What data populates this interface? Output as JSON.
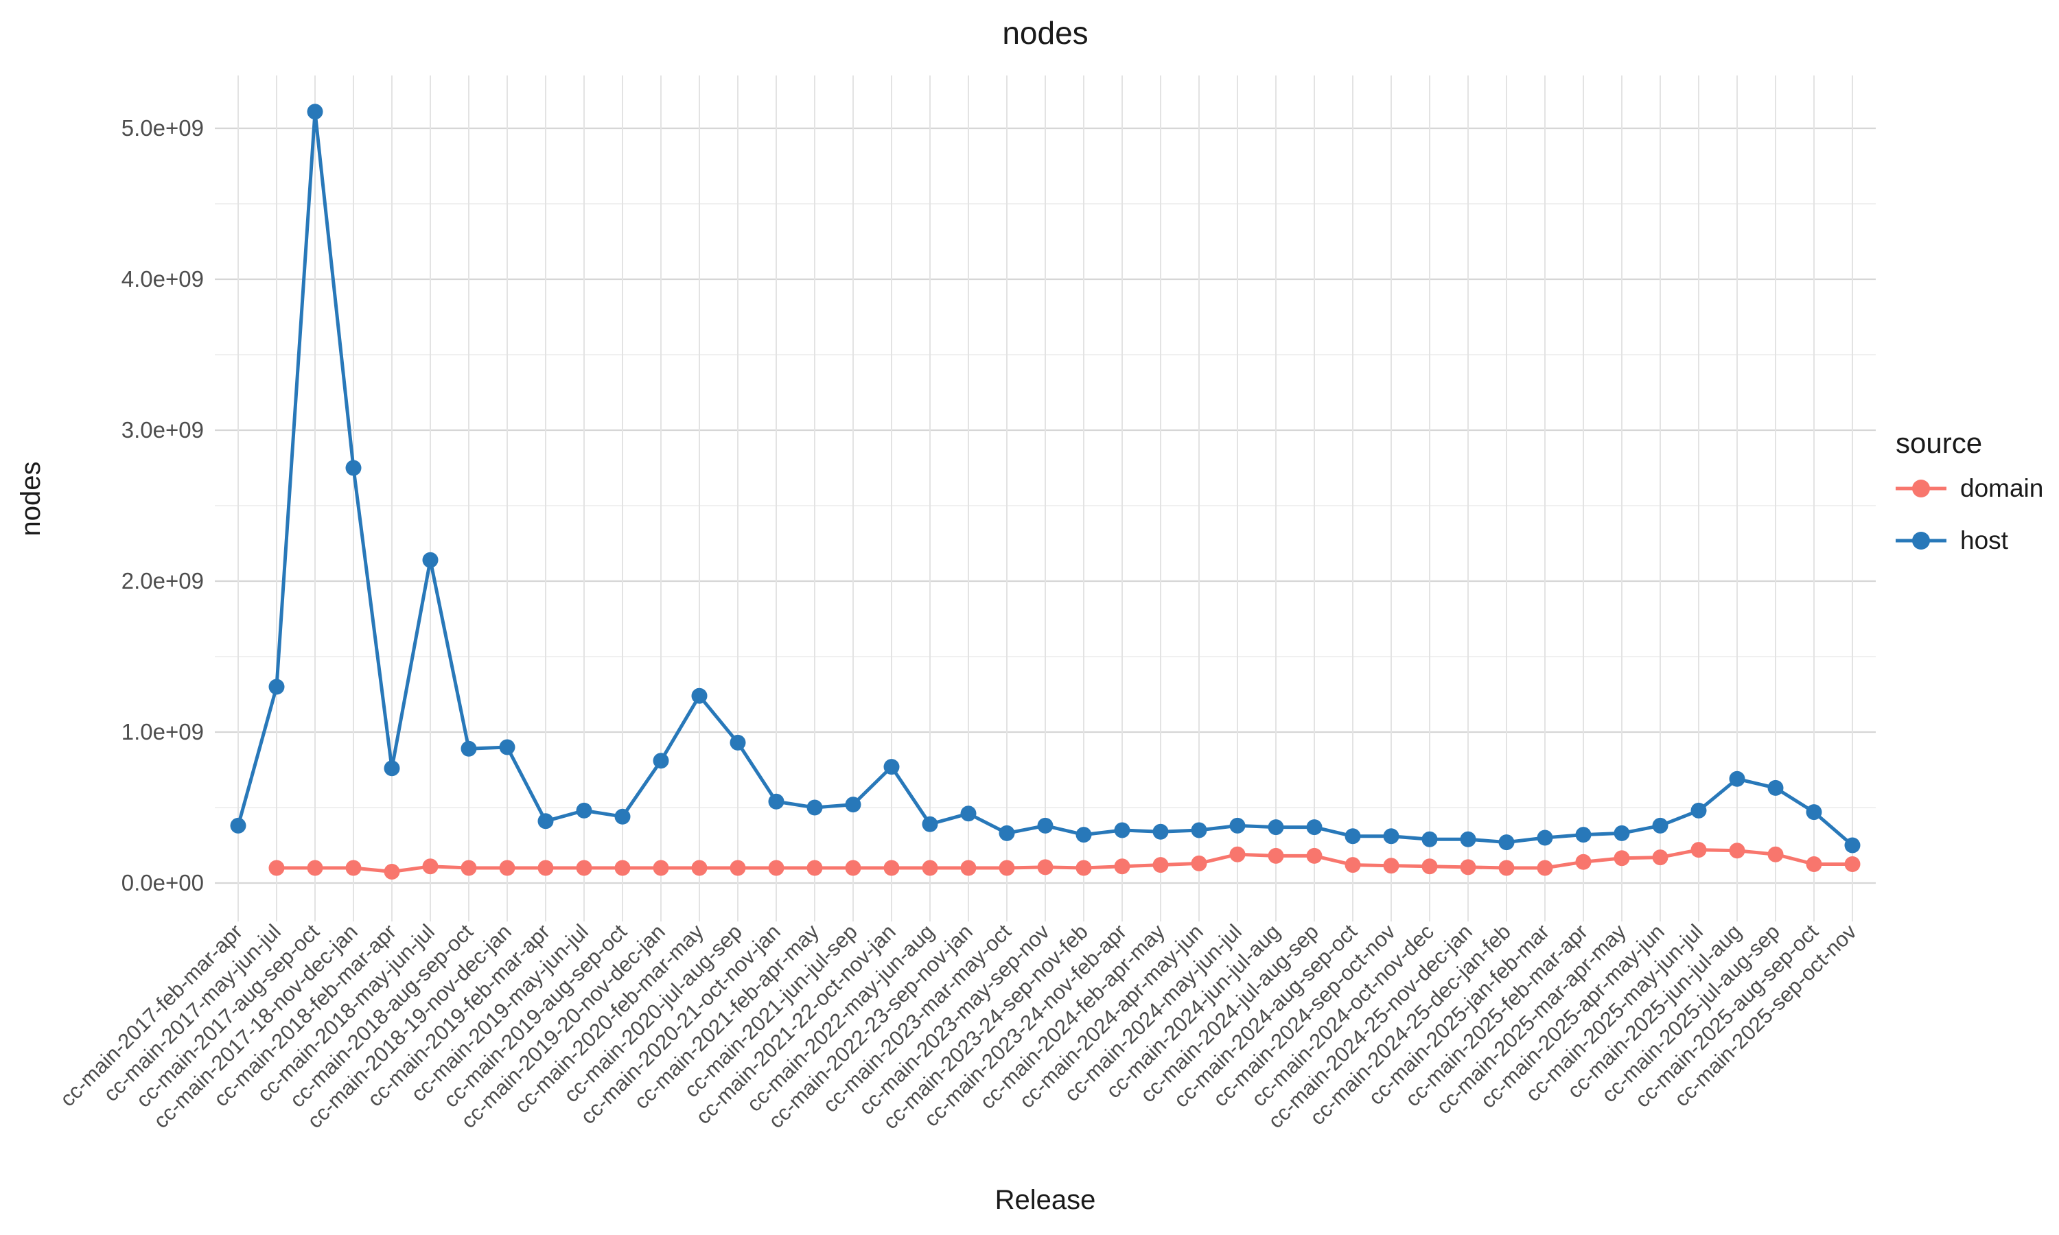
{
  "chart_data": {
    "type": "line",
    "title": "nodes",
    "xlabel": "Release",
    "ylabel": "nodes",
    "legend_title": "source",
    "legend_position": "right",
    "grid": "on",
    "ylim": [
      0,
      5350000000
    ],
    "yticks": [
      {
        "value": 0,
        "label": "0.0e+00"
      },
      {
        "value": 1000000000,
        "label": "1.0e+09"
      },
      {
        "value": 2000000000,
        "label": "2.0e+09"
      },
      {
        "value": 3000000000,
        "label": "3.0e+09"
      },
      {
        "value": 4000000000,
        "label": "4.0e+09"
      },
      {
        "value": 5000000000,
        "label": "5.0e+09"
      }
    ],
    "yminor": [
      500000000,
      1500000000,
      2500000000,
      3500000000,
      4500000000
    ],
    "categories": [
      "cc-main-2017-feb-mar-apr",
      "cc-main-2017-may-jun-jul",
      "cc-main-2017-aug-sep-oct",
      "cc-main-2017-18-nov-dec-jan",
      "cc-main-2018-feb-mar-apr",
      "cc-main-2018-may-jun-jul",
      "cc-main-2018-aug-sep-oct",
      "cc-main-2018-19-nov-dec-jan",
      "cc-main-2019-feb-mar-apr",
      "cc-main-2019-may-jun-jul",
      "cc-main-2019-aug-sep-oct",
      "cc-main-2019-20-nov-dec-jan",
      "cc-main-2020-feb-mar-may",
      "cc-main-2020-jul-aug-sep",
      "cc-main-2020-21-oct-nov-jan",
      "cc-main-2021-feb-apr-may",
      "cc-main-2021-jun-jul-sep",
      "cc-main-2021-22-oct-nov-jan",
      "cc-main-2022-may-jun-aug",
      "cc-main-2022-23-sep-nov-jan",
      "cc-main-2023-mar-may-oct",
      "cc-main-2023-may-sep-nov",
      "cc-main-2023-24-sep-nov-feb",
      "cc-main-2023-24-nov-feb-apr",
      "cc-main-2024-feb-apr-may",
      "cc-main-2024-apr-may-jun",
      "cc-main-2024-may-jun-jul",
      "cc-main-2024-jun-jul-aug",
      "cc-main-2024-jul-aug-sep",
      "cc-main-2024-aug-sep-oct",
      "cc-main-2024-sep-oct-nov",
      "cc-main-2024-oct-nov-dec",
      "cc-main-2024-25-nov-dec-jan",
      "cc-main-2024-25-dec-jan-feb",
      "cc-main-2025-jan-feb-mar",
      "cc-main-2025-feb-mar-apr",
      "cc-main-2025-mar-apr-may",
      "cc-main-2025-apr-may-jun",
      "cc-main-2025-may-jun-jul",
      "cc-main-2025-jun-jul-aug",
      "cc-main-2025-jul-aug-sep",
      "cc-main-2025-aug-sep-oct",
      "cc-main-2025-sep-oct-nov"
    ],
    "series": [
      {
        "name": "domain",
        "color": "#F8766D",
        "values": [
          null,
          100000000,
          100000000,
          100000000,
          75000000,
          110000000,
          100000000,
          100000000,
          100000000,
          100000000,
          100000000,
          100000000,
          100000000,
          100000000,
          100000000,
          100000000,
          100000000,
          100000000,
          100000000,
          100000000,
          100000000,
          105000000,
          100000000,
          110000000,
          120000000,
          130000000,
          190000000,
          180000000,
          180000000,
          120000000,
          115000000,
          110000000,
          105000000,
          100000000,
          100000000,
          140000000,
          165000000,
          170000000,
          220000000,
          215000000,
          190000000,
          125000000,
          125000000
        ]
      },
      {
        "name": "host",
        "color": "#2878B9",
        "values": [
          380000000,
          1300000000,
          5110000000,
          2750000000,
          760000000,
          2140000000,
          890000000,
          900000000,
          410000000,
          480000000,
          440000000,
          810000000,
          1240000000,
          930000000,
          540000000,
          500000000,
          520000000,
          770000000,
          390000000,
          460000000,
          330000000,
          380000000,
          320000000,
          350000000,
          340000000,
          350000000,
          380000000,
          370000000,
          370000000,
          310000000,
          310000000,
          290000000,
          290000000,
          270000000,
          300000000,
          320000000,
          330000000,
          380000000,
          480000000,
          690000000,
          630000000,
          470000000,
          250000000
        ]
      }
    ]
  }
}
